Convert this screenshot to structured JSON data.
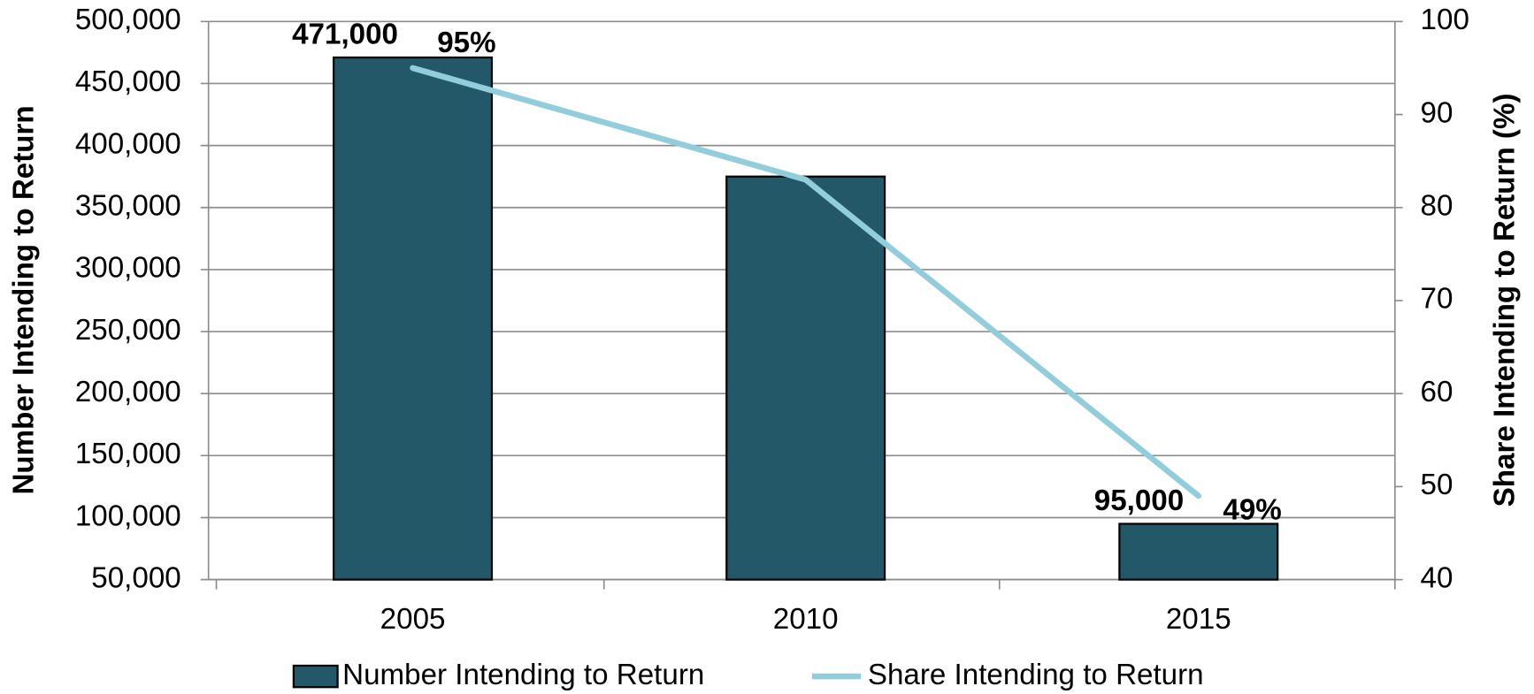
{
  "chart_data": {
    "type": "bar_line",
    "categories": [
      "2005",
      "2010",
      "2015"
    ],
    "series": [
      {
        "name": "Number Intending to Return",
        "type": "bar",
        "color": "#235868",
        "values": [
          471000,
          375000,
          95000
        ],
        "value_labels": [
          "471,000",
          null,
          "95,000"
        ]
      },
      {
        "name": "Share Intending to Return",
        "type": "line",
        "axis": "y2",
        "color": "#92cddc",
        "values": [
          95,
          83,
          49
        ],
        "value_labels": [
          "95%",
          null,
          "49%"
        ]
      }
    ],
    "y_label": "Number Intending to Return",
    "y2_label": "Share Intending to Return (%)",
    "ylim": [
      50000,
      500000
    ],
    "yticks": [
      {
        "value": 50000,
        "label": "50,000"
      },
      {
        "value": 100000,
        "label": "100,000"
      },
      {
        "value": 150000,
        "label": "150,000"
      },
      {
        "value": 200000,
        "label": "200,000"
      },
      {
        "value": 250000,
        "label": "250,000"
      },
      {
        "value": 300000,
        "label": "300,000"
      },
      {
        "value": 350000,
        "label": "350,000"
      },
      {
        "value": 400000,
        "label": "400,000"
      },
      {
        "value": 450000,
        "label": "450,000"
      },
      {
        "value": 500000,
        "label": "500,000"
      }
    ],
    "y2lim": [
      40,
      100
    ],
    "y2ticks": [
      40,
      50,
      60,
      70,
      80,
      90,
      100
    ],
    "grid": true,
    "legend": "bottom"
  }
}
